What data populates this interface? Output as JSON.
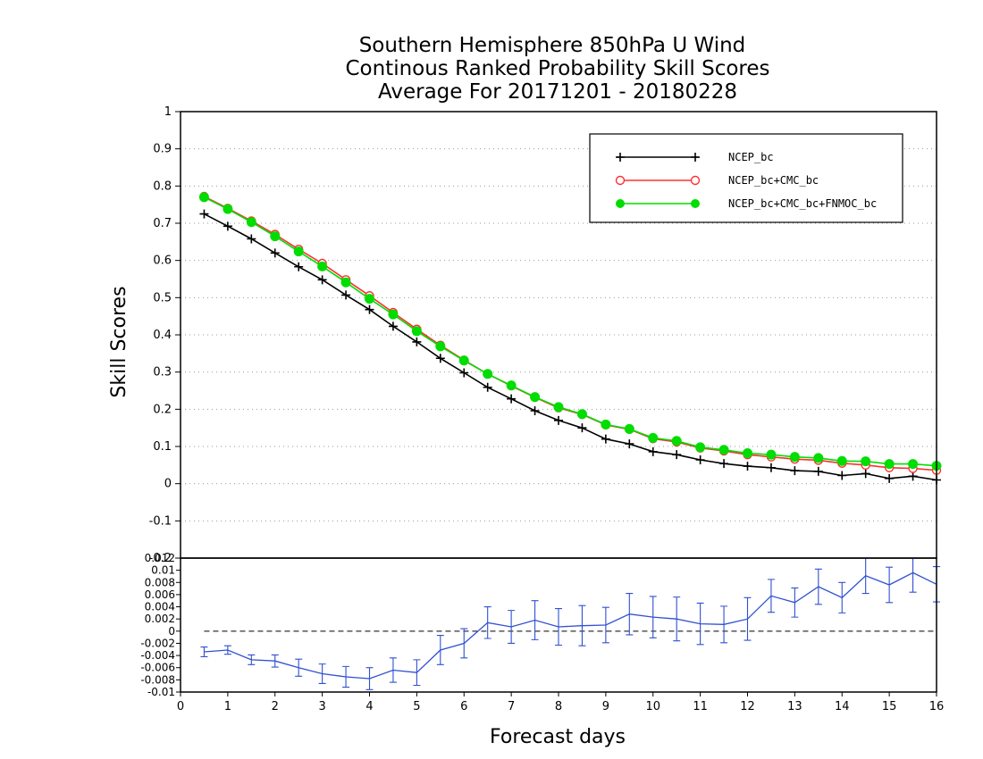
{
  "chart_data": [
    {
      "type": "line",
      "title": [
        "Southern Hemisphere 850hPa U Wind",
        "Continous Ranked Probability Skill Scores",
        "Average For 20171201 - 20180228"
      ],
      "ylabel": "Skill Scores",
      "xlim": [
        0,
        16
      ],
      "ylim": [
        -0.2,
        1
      ],
      "yticks": [
        "-0.2",
        "-0.1",
        "0",
        "0.1",
        "0.2",
        "0.3",
        "0.4",
        "0.5",
        "0.6",
        "0.7",
        "0.8",
        "0.9",
        "1"
      ],
      "yticks_values": [
        -0.2,
        -0.1,
        0,
        0.1,
        0.2,
        0.3,
        0.4,
        0.5,
        0.6,
        0.7,
        0.8,
        0.9,
        1
      ],
      "grid": true,
      "legend_position": "top-right",
      "x": [
        0.5,
        1,
        1.5,
        2,
        2.5,
        3,
        3.5,
        4,
        4.5,
        5,
        5.5,
        6,
        6.5,
        7,
        7.5,
        8,
        8.5,
        9,
        9.5,
        10,
        10.5,
        11,
        11.5,
        12,
        12.5,
        13,
        13.5,
        14,
        14.5,
        15,
        15.5,
        16
      ],
      "series": [
        {
          "name": "NCEP_bc",
          "color": "#000000",
          "marker": "plus",
          "values": [
            0.725,
            0.692,
            0.658,
            0.62,
            0.583,
            0.548,
            0.507,
            0.468,
            0.423,
            0.381,
            0.337,
            0.298,
            0.259,
            0.228,
            0.196,
            0.17,
            0.15,
            0.12,
            0.107,
            0.086,
            0.078,
            0.064,
            0.054,
            0.047,
            0.043,
            0.035,
            0.033,
            0.022,
            0.027,
            0.014,
            0.02,
            0.01
          ]
        },
        {
          "name": "NCEP_bc+CMC_bc",
          "color": "#ff3030",
          "marker": "open-circle",
          "values": [
            0.772,
            0.74,
            0.706,
            0.67,
            0.63,
            0.592,
            0.548,
            0.505,
            0.46,
            0.415,
            0.372,
            0.332,
            0.295,
            0.263,
            0.232,
            0.204,
            0.186,
            0.158,
            0.146,
            0.121,
            0.112,
            0.096,
            0.088,
            0.078,
            0.072,
            0.066,
            0.063,
            0.055,
            0.05,
            0.043,
            0.041,
            0.036
          ]
        },
        {
          "name": "NCEP_bc+CMC_bc+FNMOC_bc",
          "color": "#00dd00",
          "marker": "filled-circle",
          "values": [
            0.77,
            0.738,
            0.703,
            0.665,
            0.624,
            0.584,
            0.541,
            0.497,
            0.455,
            0.41,
            0.369,
            0.331,
            0.295,
            0.264,
            0.233,
            0.206,
            0.187,
            0.159,
            0.147,
            0.123,
            0.115,
            0.098,
            0.091,
            0.082,
            0.078,
            0.072,
            0.069,
            0.061,
            0.06,
            0.053,
            0.053,
            0.048
          ]
        }
      ]
    },
    {
      "type": "line",
      "xlabel": "Forecast days",
      "xlim": [
        0,
        16
      ],
      "ylim": [
        -0.01,
        0.012
      ],
      "xticks": [
        "0",
        "1",
        "2",
        "3",
        "4",
        "5",
        "6",
        "7",
        "8",
        "9",
        "10",
        "11",
        "12",
        "13",
        "14",
        "15",
        "16"
      ],
      "yticks": [
        "-0.01",
        "-0.008",
        "-0.006",
        "-0.004",
        "-0.002",
        "0",
        "0.002",
        "0.004",
        "0.006",
        "0.008",
        "0.01",
        "0.012"
      ],
      "yticks_values": [
        -0.01,
        -0.008,
        -0.006,
        -0.004,
        -0.002,
        0,
        0.002,
        0.004,
        0.006,
        0.008,
        0.01,
        0.012
      ],
      "reference_line": 0,
      "error_bars": true,
      "x": [
        0.5,
        1,
        1.5,
        2,
        2.5,
        3,
        3.5,
        4,
        4.5,
        5,
        5.5,
        6,
        6.5,
        7,
        7.5,
        8,
        8.5,
        9,
        9.5,
        10,
        10.5,
        11,
        11.5,
        12,
        12.5,
        13,
        13.5,
        14,
        14.5,
        15,
        15.5,
        16
      ],
      "series": [
        {
          "name": "difference",
          "color": "#3050d0",
          "values": [
            -0.0034,
            -0.0031,
            -0.0047,
            -0.0049,
            -0.006,
            -0.007,
            -0.0075,
            -0.0078,
            -0.0064,
            -0.0068,
            -0.0031,
            -0.002,
            0.0014,
            0.0007,
            0.0018,
            0.0007,
            0.0009,
            0.001,
            0.0028,
            0.0023,
            0.002,
            0.0012,
            0.0011,
            0.002,
            0.0058,
            0.0047,
            0.0073,
            0.0055,
            0.0091,
            0.0076,
            0.0096,
            0.0077
          ],
          "lower": [
            -0.0042,
            -0.0038,
            -0.0055,
            -0.0059,
            -0.0074,
            -0.0086,
            -0.0092,
            -0.0096,
            -0.0084,
            -0.0089,
            -0.0055,
            -0.0044,
            -0.0012,
            -0.002,
            -0.0014,
            -0.0023,
            -0.0024,
            -0.0019,
            -0.0006,
            -0.0011,
            -0.0016,
            -0.0022,
            -0.0019,
            -0.0015,
            0.0031,
            0.0023,
            0.0044,
            0.003,
            0.0062,
            0.0047,
            0.0064,
            0.0048
          ],
          "upper": [
            -0.0026,
            -0.0024,
            -0.0039,
            -0.0039,
            -0.0046,
            -0.0054,
            -0.0058,
            -0.006,
            -0.0044,
            -0.0047,
            -0.0007,
            0.0004,
            0.004,
            0.0034,
            0.005,
            0.0037,
            0.0042,
            0.0039,
            0.0062,
            0.0057,
            0.0056,
            0.0046,
            0.0041,
            0.0055,
            0.0085,
            0.0071,
            0.0102,
            0.008,
            0.012,
            0.0105,
            0.012,
            0.0106
          ]
        }
      ]
    }
  ]
}
